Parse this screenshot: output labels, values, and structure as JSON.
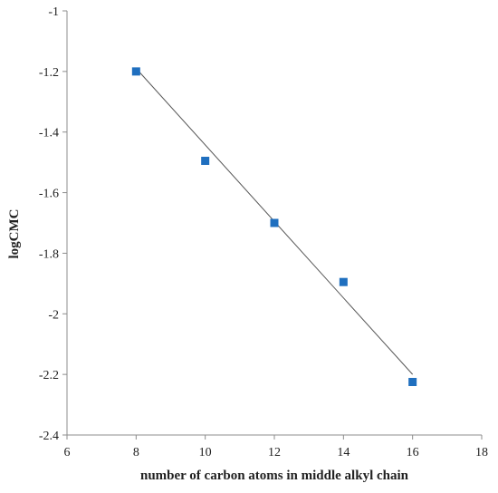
{
  "chart_data": {
    "type": "scatter",
    "title": "",
    "xlabel": "number of carbon atoms in middle alkyl chain",
    "ylabel": "logCMC",
    "xlim": [
      6,
      18
    ],
    "ylim": [
      -2.4,
      -1
    ],
    "x_ticks": [
      "6",
      "8",
      "10",
      "12",
      "14",
      "16",
      "18"
    ],
    "y_ticks": [
      "-1",
      "-1.2",
      "-1.4",
      "-1.6",
      "-1.8",
      "-2",
      "-2.2",
      "-2.4"
    ],
    "grid": false,
    "legend": "none",
    "series": [
      {
        "marker": "square",
        "color": "#1f6fbf",
        "x": [
          8,
          10,
          12,
          14,
          16
        ],
        "y": [
          -1.2,
          -1.495,
          -1.7,
          -1.895,
          -2.225
        ]
      }
    ],
    "trendline": {
      "type": "linear",
      "x": [
        8,
        16
      ],
      "y": [
        -1.19,
        -2.2
      ],
      "color": "#555555"
    }
  }
}
